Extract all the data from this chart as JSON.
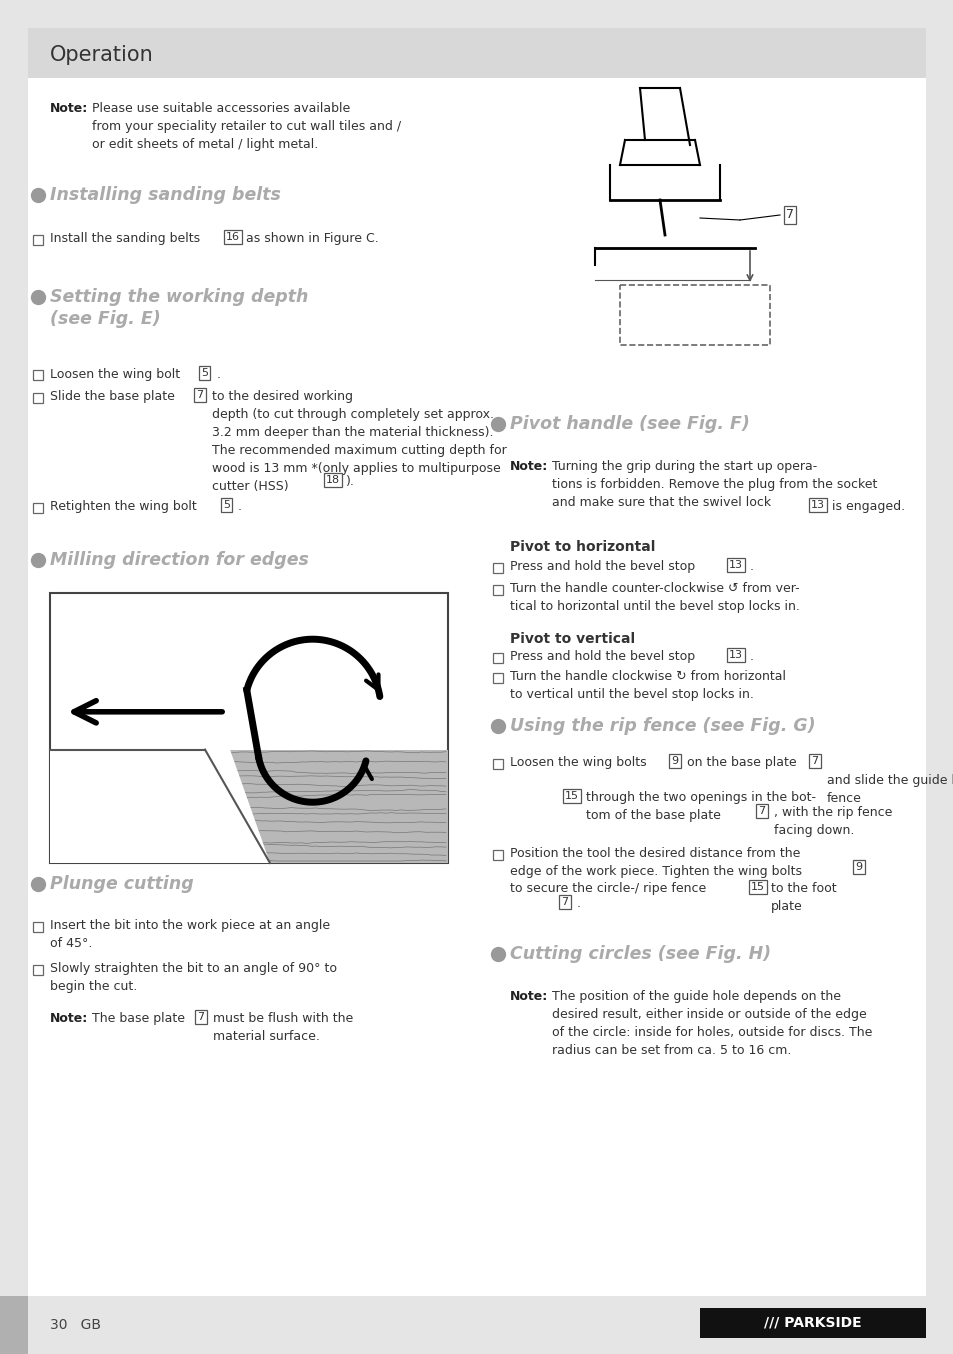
{
  "page_bg": "#e5e5e5",
  "content_bg": "#ffffff",
  "header_bg": "#d8d8d8",
  "header_text": "Operation",
  "page_num": "30   GB",
  "brand": "/// PARKSIDE"
}
